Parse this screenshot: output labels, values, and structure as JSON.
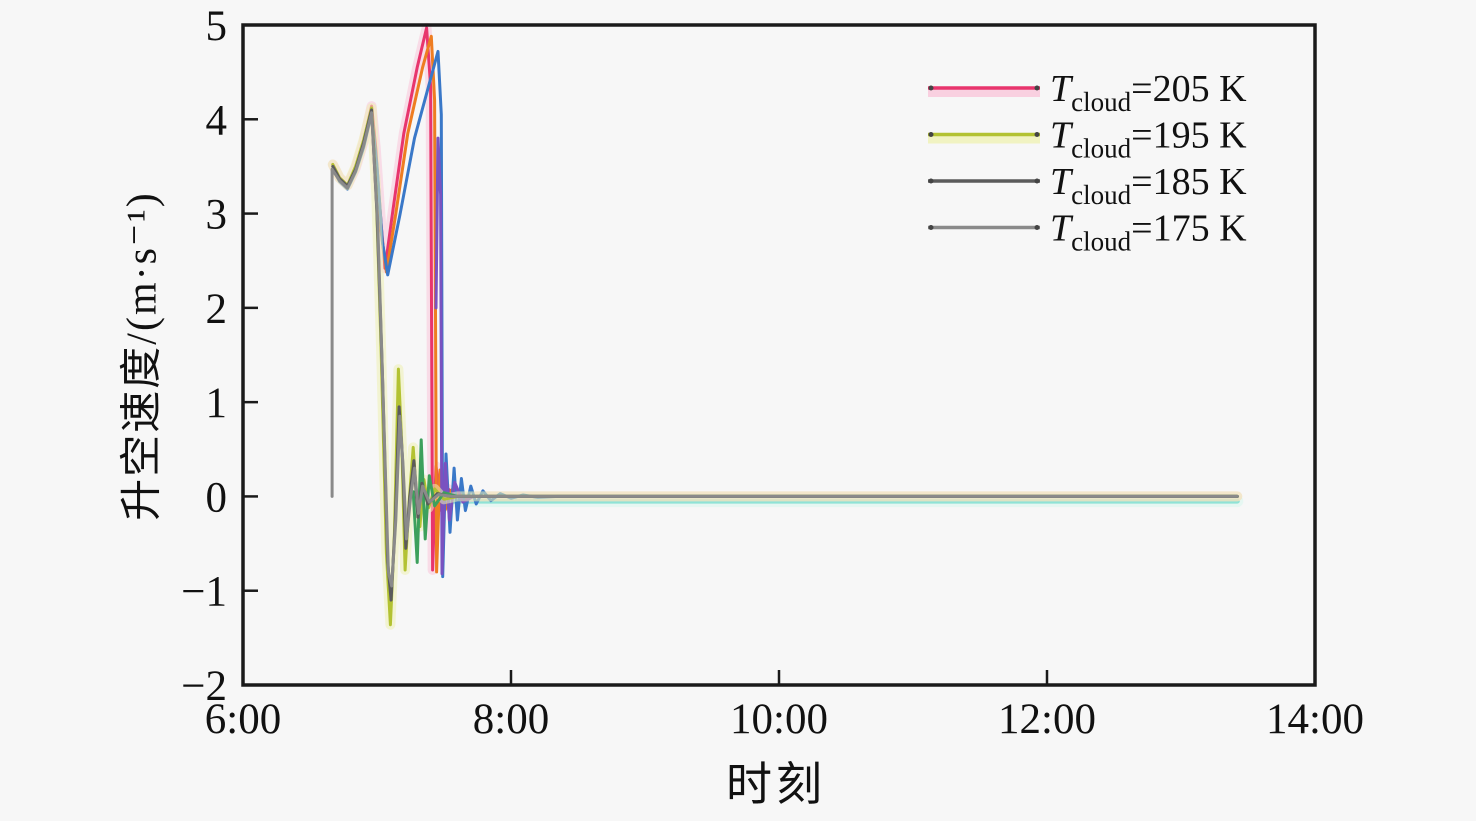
{
  "figure": {
    "background": "#f7f7f7",
    "frame_color": "#1a1a1a"
  },
  "chart_data": {
    "type": "line",
    "title": "",
    "xlabel": "时刻",
    "ylabel": "升空速度/(m·s⁻¹)",
    "x_unit": "decimal_hours",
    "x_range": [
      6,
      14
    ],
    "y_range": [
      -2,
      5
    ],
    "grid": false,
    "legend_position": "top-right-inside",
    "x_ticks": [
      {
        "v": 6,
        "label": "6:00"
      },
      {
        "v": 8,
        "label": "8:00"
      },
      {
        "v": 10,
        "label": "10:00"
      },
      {
        "v": 12,
        "label": "12:00"
      },
      {
        "v": 14,
        "label": "14:00"
      }
    ],
    "y_ticks": [
      {
        "v": 5,
        "label": "5"
      },
      {
        "v": 4,
        "label": "4"
      },
      {
        "v": 3,
        "label": "3"
      },
      {
        "v": 2,
        "label": "2"
      },
      {
        "v": 1,
        "label": "1"
      },
      {
        "v": 0,
        "label": "0"
      },
      {
        "v": -1,
        "label": "−1"
      },
      {
        "v": -2,
        "label": "−2"
      }
    ],
    "legend": [
      {
        "symbol": "T",
        "subscript": "cloud",
        "value": "=205 K",
        "color": "#e8356d",
        "glow": "#f9c6da"
      },
      {
        "symbol": "T",
        "subscript": "cloud",
        "value": "=195 K",
        "color": "#b3c232",
        "glow": "#eff1b4"
      },
      {
        "symbol": "T",
        "subscript": "cloud",
        "value": "=185 K",
        "color": "#5b5b5b",
        "glow": ""
      },
      {
        "symbol": "T",
        "subscript": "cloud",
        "value": "=175 K",
        "color": "#8a8a8a",
        "glow": ""
      }
    ],
    "series": [
      {
        "name": "aux-cyan-flat",
        "color": "#8fe3d6",
        "glow": "#d9f7ef",
        "width": 5,
        "points": [
          [
            7.4,
            -0.05
          ],
          [
            13.42,
            -0.05
          ]
        ]
      },
      {
        "name": "Tcloud=205K",
        "color": "#e8356d",
        "glow": "#f9c6da",
        "width": 3,
        "points": [
          [
            6.67,
            3.52
          ],
          [
            6.72,
            3.38
          ],
          [
            6.78,
            3.3
          ],
          [
            6.84,
            3.48
          ],
          [
            6.9,
            3.76
          ],
          [
            6.96,
            4.14
          ],
          [
            6.99,
            3.7
          ],
          [
            7.03,
            2.9
          ],
          [
            7.06,
            2.42
          ],
          [
            7.12,
            3.05
          ],
          [
            7.2,
            3.85
          ],
          [
            7.3,
            4.55
          ],
          [
            7.37,
            4.97
          ],
          [
            7.4,
            4.35
          ],
          [
            7.415,
            -0.78
          ],
          [
            7.44,
            0.32
          ],
          [
            7.48,
            -0.15
          ],
          [
            7.53,
            0.08
          ],
          [
            7.62,
            -0.02
          ],
          [
            7.75,
            0
          ],
          [
            13.42,
            0
          ]
        ]
      },
      {
        "name": "aux-orange",
        "color": "#ee7d21",
        "glow": "",
        "width": 3,
        "points": [
          [
            6.67,
            3.5
          ],
          [
            6.72,
            3.36
          ],
          [
            6.78,
            3.28
          ],
          [
            6.84,
            3.46
          ],
          [
            6.9,
            3.74
          ],
          [
            6.96,
            4.1
          ],
          [
            6.99,
            3.62
          ],
          [
            7.03,
            2.82
          ],
          [
            7.07,
            2.38
          ],
          [
            7.14,
            3.0
          ],
          [
            7.23,
            3.85
          ],
          [
            7.34,
            4.55
          ],
          [
            7.405,
            4.88
          ],
          [
            7.43,
            4.2
          ],
          [
            7.445,
            -0.8
          ],
          [
            7.47,
            0.28
          ],
          [
            7.51,
            -0.14
          ],
          [
            7.56,
            0.07
          ],
          [
            7.65,
            0
          ],
          [
            13.42,
            0
          ]
        ]
      },
      {
        "name": "aux-blue",
        "color": "#3a78c8",
        "glow": "",
        "width": 3,
        "points": [
          [
            6.67,
            3.48
          ],
          [
            6.72,
            3.34
          ],
          [
            6.78,
            3.26
          ],
          [
            6.84,
            3.44
          ],
          [
            6.9,
            3.7
          ],
          [
            6.96,
            4.06
          ],
          [
            7.0,
            3.5
          ],
          [
            7.04,
            2.7
          ],
          [
            7.08,
            2.35
          ],
          [
            7.17,
            2.98
          ],
          [
            7.28,
            3.8
          ],
          [
            7.41,
            4.48
          ],
          [
            7.455,
            4.72
          ],
          [
            7.48,
            4.05
          ],
          [
            7.49,
            -0.85
          ],
          [
            7.515,
            0.45
          ],
          [
            7.545,
            -0.38
          ],
          [
            7.575,
            0.3
          ],
          [
            7.6,
            -0.25
          ],
          [
            7.63,
            0.19
          ],
          [
            7.66,
            -0.15
          ],
          [
            7.7,
            0.11
          ],
          [
            7.74,
            -0.08
          ],
          [
            7.79,
            0.06
          ],
          [
            7.85,
            -0.045
          ],
          [
            7.92,
            0.03
          ],
          [
            8.0,
            -0.02
          ],
          [
            8.09,
            0.015
          ],
          [
            8.2,
            -0.01
          ],
          [
            8.35,
            0
          ],
          [
            13.42,
            0
          ]
        ]
      },
      {
        "name": "aux-purple",
        "color": "#7a52c0",
        "glow": "",
        "width": 3,
        "points": [
          [
            7.44,
            2.0
          ],
          [
            7.455,
            3.8
          ],
          [
            7.475,
            3.2
          ],
          [
            7.485,
            -0.82
          ],
          [
            7.51,
            0.35
          ],
          [
            7.54,
            -0.25
          ],
          [
            7.58,
            0.15
          ],
          [
            7.64,
            -0.06
          ],
          [
            7.72,
            0
          ],
          [
            13.42,
            0
          ]
        ]
      },
      {
        "name": "Tcloud=195K",
        "color": "#b3c232",
        "glow": "#eff1b4",
        "width": 3,
        "points": [
          [
            6.67,
            3.52
          ],
          [
            6.72,
            3.38
          ],
          [
            6.78,
            3.3
          ],
          [
            6.84,
            3.5
          ],
          [
            6.9,
            3.78
          ],
          [
            6.96,
            4.12
          ],
          [
            6.995,
            3.2
          ],
          [
            7.03,
            1.6
          ],
          [
            7.07,
            -0.6
          ],
          [
            7.1,
            -1.36
          ],
          [
            7.13,
            -0.4
          ],
          [
            7.16,
            1.35
          ],
          [
            7.185,
            0.55
          ],
          [
            7.21,
            -0.78
          ],
          [
            7.24,
            -0.05
          ],
          [
            7.27,
            0.52
          ],
          [
            7.295,
            0.02
          ],
          [
            7.32,
            -0.32
          ],
          [
            7.35,
            0.18
          ],
          [
            7.385,
            -0.12
          ],
          [
            7.43,
            0.08
          ],
          [
            7.5,
            -0.03
          ],
          [
            7.6,
            0
          ],
          [
            13.42,
            0
          ]
        ]
      },
      {
        "name": "aux-green",
        "color": "#3da05c",
        "glow": "",
        "width": 3,
        "points": [
          [
            7.27,
            0.05
          ],
          [
            7.3,
            -0.7
          ],
          [
            7.33,
            0.6
          ],
          [
            7.36,
            -0.45
          ],
          [
            7.39,
            0.22
          ],
          [
            7.43,
            -0.1
          ],
          [
            7.5,
            0.04
          ],
          [
            7.6,
            0
          ],
          [
            13.42,
            0
          ]
        ]
      },
      {
        "name": "Tcloud=185K",
        "color": "#5b5b5b",
        "glow": "",
        "width": 3,
        "points": [
          [
            6.67,
            3.5
          ],
          [
            6.72,
            3.37
          ],
          [
            6.78,
            3.29
          ],
          [
            6.84,
            3.47
          ],
          [
            6.9,
            3.75
          ],
          [
            6.96,
            4.1
          ],
          [
            7.0,
            3.0
          ],
          [
            7.04,
            1.3
          ],
          [
            7.08,
            -0.7
          ],
          [
            7.105,
            -1.1
          ],
          [
            7.135,
            -0.3
          ],
          [
            7.165,
            0.95
          ],
          [
            7.19,
            0.4
          ],
          [
            7.215,
            -0.55
          ],
          [
            7.245,
            0.0
          ],
          [
            7.275,
            0.38
          ],
          [
            7.305,
            -0.22
          ],
          [
            7.335,
            0.14
          ],
          [
            7.38,
            -0.08
          ],
          [
            7.45,
            0.03
          ],
          [
            7.55,
            0
          ],
          [
            13.42,
            0
          ]
        ]
      },
      {
        "name": "Tcloud=175K",
        "color": "#8a8a8a",
        "glow": "",
        "width": 3,
        "points": [
          [
            6.665,
            0.0
          ],
          [
            6.665,
            3.47
          ],
          [
            6.72,
            3.35
          ],
          [
            6.78,
            3.27
          ],
          [
            6.84,
            3.45
          ],
          [
            6.9,
            3.72
          ],
          [
            6.96,
            4.07
          ],
          [
            7.005,
            2.9
          ],
          [
            7.045,
            1.1
          ],
          [
            7.085,
            -0.8
          ],
          [
            7.11,
            -0.95
          ],
          [
            7.14,
            -0.25
          ],
          [
            7.17,
            0.85
          ],
          [
            7.195,
            0.32
          ],
          [
            7.22,
            -0.45
          ],
          [
            7.25,
            -0.02
          ],
          [
            7.28,
            0.3
          ],
          [
            7.31,
            -0.18
          ],
          [
            7.34,
            0.11
          ],
          [
            7.39,
            -0.06
          ],
          [
            7.46,
            0.02
          ],
          [
            7.56,
            0
          ],
          [
            13.42,
            0
          ]
        ]
      }
    ]
  }
}
